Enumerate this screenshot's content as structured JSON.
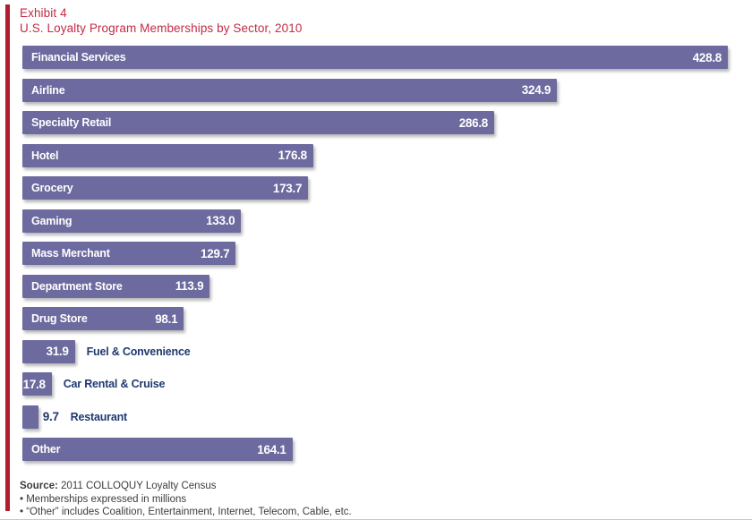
{
  "header": {
    "exhibit_label": "Exhibit 4",
    "title": "U.S. Loyalty Program Memberships by Sector, 2010"
  },
  "chart_data": {
    "type": "bar",
    "orientation": "horizontal",
    "title": "U.S. Loyalty Program Memberships by Sector, 2010",
    "categories": [
      "Financial Services",
      "Airline",
      "Specialty Retail",
      "Hotel",
      "Grocery",
      "Gaming",
      "Mass Merchant",
      "Department Store",
      "Drug Store",
      "Fuel & Convenience",
      "Car Rental & Cruise",
      "Restaurant",
      "Other"
    ],
    "values": [
      428.8,
      324.9,
      286.8,
      176.8,
      173.7,
      133.0,
      129.7,
      113.9,
      98.1,
      31.9,
      17.8,
      9.7,
      164.1
    ],
    "value_labels": [
      "428.8",
      "324.9",
      "286.8",
      "176.8",
      "173.7",
      "133.0",
      "129.7",
      "113.9",
      "98.1",
      "31.9",
      "17.8",
      "9.7",
      "164.1"
    ],
    "unit": "memberships in millions",
    "xlim": [
      0,
      428.8
    ],
    "grid": false,
    "legend": false,
    "bar_color": "#6c6a9e",
    "value_label_color_inside": "#ffffff",
    "value_label_color_outside": "#1e3a70"
  },
  "footer": {
    "source_label": "Source:",
    "source_text": "2011 COLLOQUY Loyalty Census",
    "notes": [
      "• Memberships expressed in millions",
      "• “Other” includes Coalition, Entertainment, Internet, Telecom, Cable, etc."
    ]
  },
  "colors": {
    "accent_red": "#b01c30",
    "title_red": "#c22b43",
    "bar_purple": "#6c6a9e",
    "label_navy": "#1e3a70",
    "footer_gray": "#3d3d3d"
  }
}
